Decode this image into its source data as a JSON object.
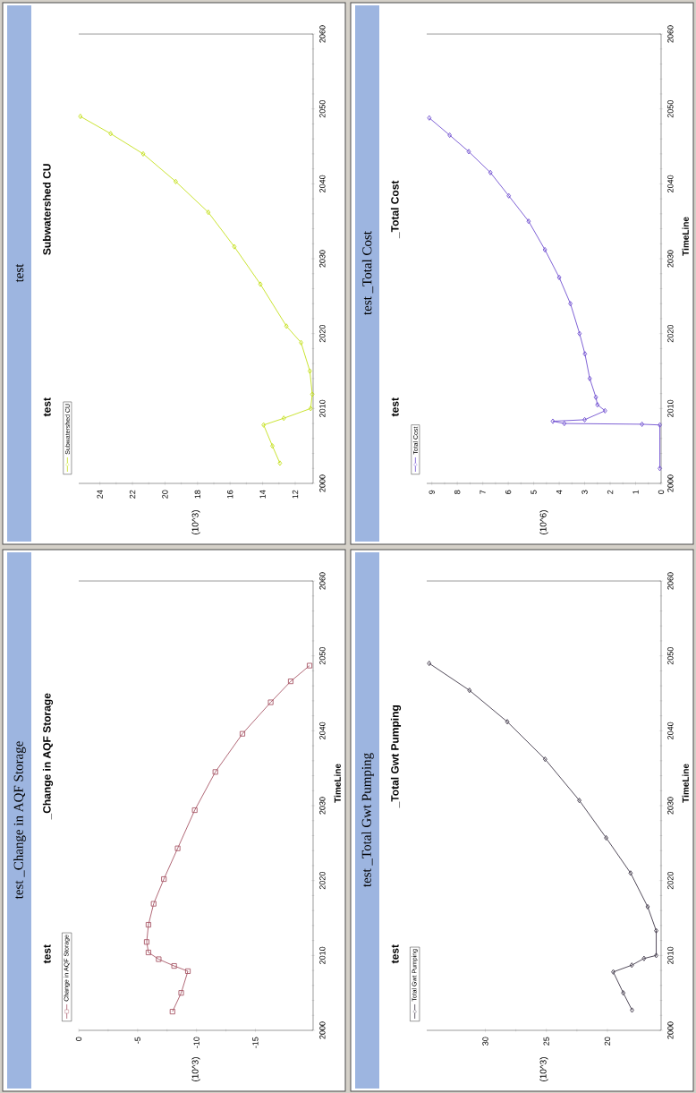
{
  "chart_data": [
    {
      "type": "line",
      "title": "test",
      "annotations": [
        "test",
        "Subwatershed CU",
        "(10^3)"
      ],
      "xlim": [
        25.3,
        10.9
      ],
      "xticks": [
        24,
        22,
        20,
        18,
        16,
        14,
        12
      ],
      "ylim": [
        2000,
        2060
      ],
      "yticks": [
        2000,
        2010,
        2020,
        2030,
        2040,
        2050,
        2060
      ],
      "legend": "bottom left",
      "marker": "diamond",
      "series": [
        {
          "name": "Subwatershed CU",
          "color": "#c4e01c",
          "x": [
            12.94,
            13.4,
            13.94,
            12.7,
            11.05,
            10.95,
            11.1,
            11.64,
            12.54,
            14.14,
            15.74,
            17.34,
            19.34,
            21.34,
            23.34,
            25.2
          ],
          "values": [
            2002.7,
            2005,
            2007.8,
            2008.7,
            2010,
            2011.9,
            2015,
            2018.8,
            2021,
            2026.6,
            2031.6,
            2036.2,
            2040.3,
            2044,
            2046.7,
            2049
          ]
        }
      ]
    },
    {
      "type": "line",
      "title": "test _Total Cost",
      "annotations": [
        "test",
        "_Total Cost",
        "(10^6)"
      ],
      "ylabel": "TimeLine",
      "xlim": [
        9.2,
        0
      ],
      "xticks": [
        9,
        8,
        7,
        6,
        5,
        4,
        3,
        2,
        1,
        0
      ],
      "ylim": [
        2000,
        2060
      ],
      "yticks": [
        2000,
        2010,
        2020,
        2030,
        2040,
        2050,
        2060
      ],
      "legend": "bottom left",
      "marker": "diamond",
      "series": [
        {
          "name": "Total Cost",
          "color": "#7050d0",
          "x": [
            0.05,
            0.05,
            0.75,
            3.8,
            4.25,
            3.0,
            2.2,
            2.5,
            2.56,
            2.8,
            2.99,
            3.2,
            3.56,
            4.0,
            4.56,
            5.2,
            5.98,
            6.7,
            7.55,
            8.3,
            9.1
          ],
          "values": [
            2002,
            2007.8,
            2007.9,
            2008,
            2008.3,
            2008.5,
            2009.7,
            2010.5,
            2011.5,
            2014,
            2017.3,
            2020,
            2024,
            2027.5,
            2031.2,
            2035,
            2038.4,
            2041.5,
            2044.3,
            2046.5,
            2048.8
          ]
        }
      ]
    },
    {
      "type": "line",
      "title": "test _Change in AQF Storage",
      "annotations": [
        "test",
        "_Change in AQF Storage",
        "(10^3)"
      ],
      "ylabel": "TimeLine",
      "xlim": [
        0,
        -19.9
      ],
      "xticks": [
        0,
        -5,
        -10,
        -15
      ],
      "ylim": [
        2000,
        2060
      ],
      "yticks": [
        2000,
        2010,
        2020,
        2030,
        2040,
        2050,
        2060
      ],
      "legend": "bottom left",
      "marker": "square",
      "series": [
        {
          "name": "Change in AQF Storage",
          "color": "#a85868",
          "x": [
            -7.96,
            -8.7,
            -9.27,
            -8.1,
            -6.79,
            -5.92,
            -5.77,
            -5.92,
            -6.36,
            -7.23,
            -8.4,
            -9.85,
            -11.6,
            -13.9,
            -16.3,
            -18.0,
            -19.6
          ],
          "values": [
            2002.5,
            2005,
            2007.9,
            2008.6,
            2009.5,
            2010.4,
            2011.8,
            2014.1,
            2016.9,
            2020.2,
            2024.3,
            2029.4,
            2034.5,
            2039.6,
            2043.8,
            2046.6,
            2048.7
          ]
        }
      ]
    },
    {
      "type": "line",
      "title": "test _Total Gwt Pumping",
      "annotations": [
        "test",
        "_Total Gwt Pumping",
        "(10^3)"
      ],
      "ylabel": "TimeLine",
      "xlim": [
        34.8,
        15.6
      ],
      "xticks": [
        30,
        25,
        20
      ],
      "ylim": [
        2000,
        2060
      ],
      "yticks": [
        2000,
        2010,
        2020,
        2030,
        2040,
        2050,
        2060
      ],
      "legend": "bottom left",
      "marker": "diamond",
      "series": [
        {
          "name": "Total Gwt Pumping",
          "color": "#403848",
          "x": [
            17.98,
            18.7,
            19.52,
            18.0,
            17.0,
            16.0,
            16.0,
            16.7,
            18.1,
            20.1,
            22.3,
            25.1,
            28.2,
            31.3,
            34.6
          ],
          "values": [
            2002.7,
            2005,
            2007.8,
            2008.7,
            2009.6,
            2010,
            2013.3,
            2016.5,
            2021,
            2025.7,
            2030.7,
            2036.2,
            2041.2,
            2045.4,
            2049
          ]
        }
      ]
    }
  ]
}
